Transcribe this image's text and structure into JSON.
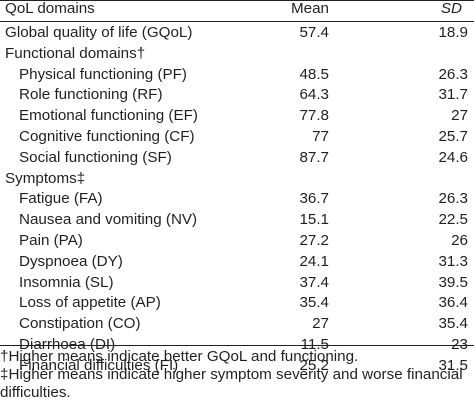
{
  "table": {
    "header": {
      "domain": "QoL domains",
      "mean": "Mean",
      "sd": "SD"
    },
    "rows": [
      {
        "label": "Global quality of life (GQoL)",
        "mean": "57.4",
        "sd": "18.9"
      },
      {
        "label": "Functional domains†",
        "mean": "",
        "sd": ""
      },
      {
        "label": "Physical functioning (PF)",
        "mean": "48.5",
        "sd": "26.3"
      },
      {
        "label": "Role functioning (RF)",
        "mean": "64.3",
        "sd": "31.7"
      },
      {
        "label": "Emotional functioning (EF)",
        "mean": "77.8",
        "sd": "27"
      },
      {
        "label": "Cognitive functioning (CF)",
        "mean": "77",
        "sd": "25.7"
      },
      {
        "label": "Social functioning (SF)",
        "mean": "87.7",
        "sd": "24.6"
      },
      {
        "label": "Symptoms‡",
        "mean": "",
        "sd": ""
      },
      {
        "label": "Fatigue (FA)",
        "mean": "36.7",
        "sd": "26.3"
      },
      {
        "label": "Nausea and vomiting (NV)",
        "mean": "15.1",
        "sd": "22.5"
      },
      {
        "label": "Pain (PA)",
        "mean": "27.2",
        "sd": "26"
      },
      {
        "label": "Dyspnoea (DY)",
        "mean": "24.1",
        "sd": "31.3"
      },
      {
        "label": "Insomnia (SL)",
        "mean": "37.4",
        "sd": "39.5"
      },
      {
        "label": "Loss of appetite (AP)",
        "mean": "35.4",
        "sd": "36.4"
      },
      {
        "label": "Constipation (CO)",
        "mean": "27",
        "sd": "35.4"
      },
      {
        "label": "Diarrhoea (DI)",
        "mean": "11.5",
        "sd": "23"
      },
      {
        "label": "Financial difficulties (FI)",
        "mean": "25.2",
        "sd": "31.5"
      }
    ]
  },
  "footnotes": {
    "line1": "†Higher means indicate better GQoL and functioning.",
    "line2": "‡Higher means indicate higher symptom severity and worse financial",
    "line3": "difficulties."
  }
}
